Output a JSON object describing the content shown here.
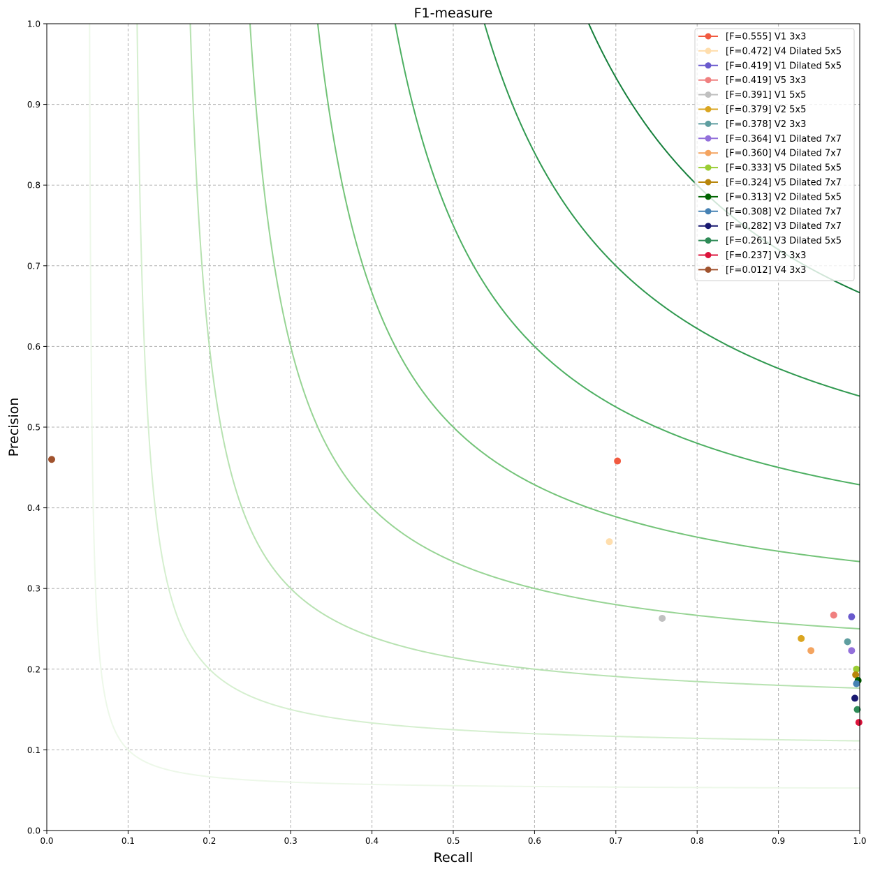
{
  "chart_data": {
    "type": "scatter",
    "title": "F1-measure",
    "xlabel": "Recall",
    "ylabel": "Precision",
    "xlim": [
      0,
      1
    ],
    "ylim": [
      0,
      1
    ],
    "xticks": [
      "0.0",
      "0.1",
      "0.2",
      "0.3",
      "0.4",
      "0.5",
      "0.6",
      "0.7",
      "0.8",
      "0.9",
      "1.0"
    ],
    "yticks": [
      "0.0",
      "0.1",
      "0.2",
      "0.3",
      "0.4",
      "0.5",
      "0.6",
      "0.7",
      "0.8",
      "0.9",
      "1.0"
    ],
    "grid": true,
    "legend_position": "top-right",
    "iso_f1_curves": [
      {
        "f": 0.1,
        "color": "#edf8e9"
      },
      {
        "f": 0.2,
        "color": "#d5efcf"
      },
      {
        "f": 0.3,
        "color": "#b7e2b1"
      },
      {
        "f": 0.4,
        "color": "#97d494"
      },
      {
        "f": 0.5,
        "color": "#73c378"
      },
      {
        "f": 0.6,
        "color": "#4daf62"
      },
      {
        "f": 0.7,
        "color": "#2f984f"
      },
      {
        "f": 0.8,
        "color": "#157f3b"
      }
    ],
    "series": [
      {
        "name": "[F=0.555] V1 3x3",
        "color": "#f15a40",
        "x": 0.702,
        "y": 0.458
      },
      {
        "name": "[F=0.472] V4 Dilated 5x5",
        "color": "#ffdead",
        "x": 0.692,
        "y": 0.358
      },
      {
        "name": "[F=0.419] V1 Dilated 5x5",
        "color": "#6a5acd",
        "x": 0.99,
        "y": 0.265
      },
      {
        "name": "[F=0.419] V5 3x3",
        "color": "#f08080",
        "x": 0.968,
        "y": 0.267
      },
      {
        "name": "[F=0.391] V1  5x5",
        "color": "#c0c0c0",
        "x": 0.757,
        "y": 0.263
      },
      {
        "name": "[F=0.379] V2  5x5",
        "color": "#daa520",
        "x": 0.928,
        "y": 0.238
      },
      {
        "name": "[F=0.378] V2 3x3",
        "color": "#5f9ea0",
        "x": 0.985,
        "y": 0.234
      },
      {
        "name": "[F=0.364] V1 Dilated 7x7",
        "color": "#9370db",
        "x": 0.99,
        "y": 0.223
      },
      {
        "name": "[F=0.360] V4 Dilated 7x7",
        "color": "#f4a460",
        "x": 0.94,
        "y": 0.223
      },
      {
        "name": "[F=0.333] V5 Dilated 5x5",
        "color": "#9acd32",
        "x": 0.996,
        "y": 0.2
      },
      {
        "name": "[F=0.324] V5 Dilated 7x7",
        "color": "#b8860b",
        "x": 0.995,
        "y": 0.193
      },
      {
        "name": "[F=0.313] V2 Dilated 5x5",
        "color": "#006400",
        "x": 0.998,
        "y": 0.186
      },
      {
        "name": "[F=0.308] V2 Dilated 7x7",
        "color": "#4682b4",
        "x": 0.996,
        "y": 0.182
      },
      {
        "name": "[F=0.282] V3 Dilated 7x7",
        "color": "#191970",
        "x": 0.994,
        "y": 0.164
      },
      {
        "name": "[F=0.261] V3 Dilated 5x5",
        "color": "#2e8b57",
        "x": 0.997,
        "y": 0.15
      },
      {
        "name": "[F=0.237] V3 3x3",
        "color": "#dc143c",
        "x": 0.999,
        "y": 0.134
      },
      {
        "name": "[F=0.012] V4 3x3",
        "color": "#a0522d",
        "x": 0.006,
        "y": 0.46
      }
    ]
  }
}
